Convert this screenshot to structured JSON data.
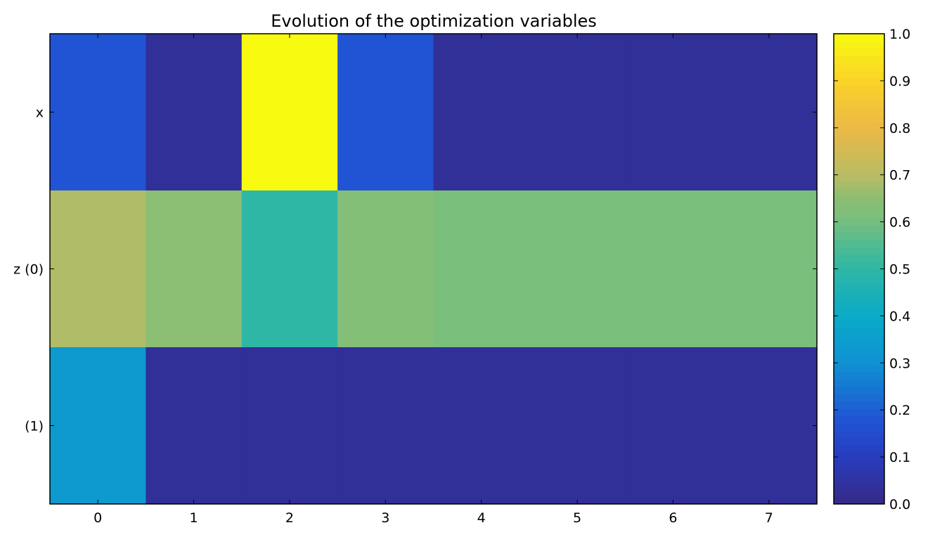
{
  "chart_data": {
    "type": "heatmap",
    "title": "Evolution of the optimization variables",
    "xlabel": "",
    "ylabel": "",
    "x_ticks": [
      "0",
      "1",
      "2",
      "3",
      "4",
      "5",
      "6",
      "7"
    ],
    "y_ticks": [
      "x",
      "z (0)",
      "(1)"
    ],
    "values": [
      [
        0.18,
        0.03,
        1.0,
        0.18,
        0.03,
        0.03,
        0.03,
        0.03
      ],
      [
        0.69,
        0.65,
        0.5,
        0.63,
        0.61,
        0.61,
        0.61,
        0.61
      ],
      [
        0.33,
        0.03,
        0.03,
        0.03,
        0.03,
        0.03,
        0.03,
        0.03
      ]
    ],
    "colorbar": {
      "range": [
        0.0,
        1.0
      ],
      "ticks": [
        "0.0",
        "0.1",
        "0.2",
        "0.3",
        "0.4",
        "0.5",
        "0.6",
        "0.7",
        "0.8",
        "0.9",
        "1.0"
      ],
      "colormap": "parula"
    },
    "grid": false,
    "legend": "none"
  }
}
